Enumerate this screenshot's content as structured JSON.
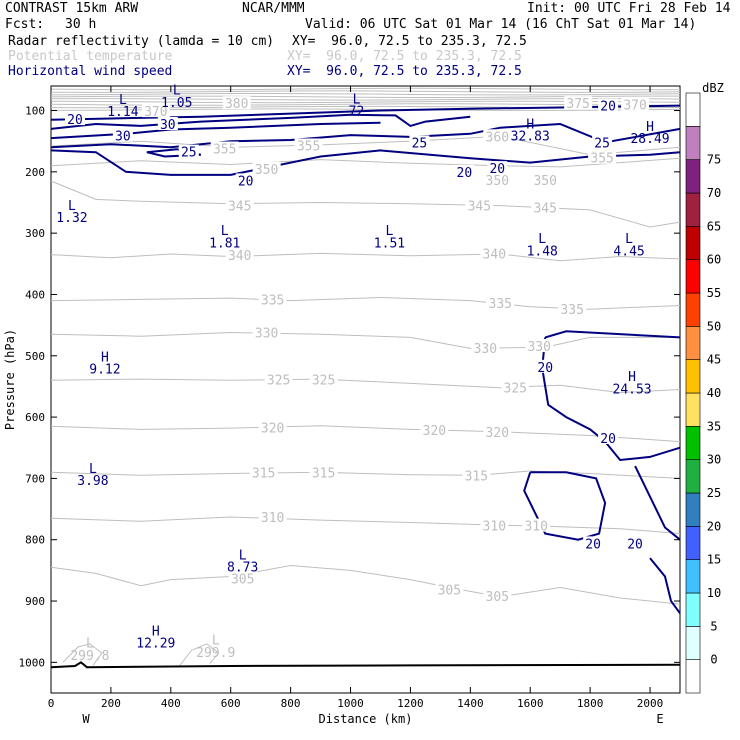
{
  "header": {
    "model": "CONTRAST 15km ARW",
    "center": "NCAR/MMM",
    "init": "Init: 00 UTC Fri 28 Feb 14",
    "fcst_label": "Fcst:",
    "fcst_value": "30 h",
    "valid": "Valid: 06 UTC Sat 01 Mar 14 (16 ChT Sat 01 Mar 14)",
    "fields": [
      {
        "name": "Radar reflectivity (lamda = 10 cm)",
        "xy": "XY=  96.0, 72.5 to 235.3, 72.5",
        "style": "black"
      },
      {
        "name": "Potential temperature",
        "xy": "XY=  96.0, 72.5 to 235.3, 72.5",
        "style": "faint"
      },
      {
        "name": "Horizontal wind speed",
        "xy": "XY=  96.0, 72.5 to 235.3, 72.5",
        "style": "navy"
      }
    ]
  },
  "chart_data": {
    "type": "contour-cross-section",
    "xlabel": "Distance (km)",
    "ylabel": "Pressure (hPa)",
    "xlim": [
      0,
      2100
    ],
    "ylim": [
      1050,
      60
    ],
    "x_ticks": [
      0,
      200,
      400,
      600,
      800,
      1000,
      1200,
      1400,
      1600,
      1800,
      2000
    ],
    "y_ticks": [
      100,
      200,
      300,
      400,
      500,
      600,
      700,
      800,
      900,
      1000
    ],
    "west_label": "W",
    "east_label": "E",
    "colorbar": {
      "unit": "dBZ",
      "levels": [
        0,
        5,
        10,
        15,
        20,
        25,
        30,
        35,
        40,
        45,
        50,
        55,
        60,
        65,
        70,
        75
      ],
      "colors": [
        "#ffffff",
        "#e0ffff",
        "#80ffff",
        "#40c0ff",
        "#4060ff",
        "#3080c0",
        "#20b040",
        "#00c000",
        "#ffe060",
        "#ffc000",
        "#ff9040",
        "#ff4000",
        "#ff0000",
        "#c00000",
        "#a02040",
        "#802080",
        "#c080c0",
        "#ffffff"
      ]
    },
    "colors": {
      "theta": "#bebebe",
      "wind": "#000080",
      "ground": "#000000"
    },
    "theta_labels": [
      {
        "text": "380",
        "x": 620,
        "p": 88
      },
      {
        "text": "370",
        "x": 350,
        "p": 101
      },
      {
        "text": "375",
        "x": 1760,
        "p": 88
      },
      {
        "text": "370",
        "x": 1950,
        "p": 90
      },
      {
        "text": "360",
        "x": 1490,
        "p": 142
      },
      {
        "text": "355",
        "x": 580,
        "p": 162
      },
      {
        "text": "355",
        "x": 860,
        "p": 157
      },
      {
        "text": "355",
        "x": 1840,
        "p": 177
      },
      {
        "text": "350",
        "x": 720,
        "p": 195
      },
      {
        "text": "350",
        "x": 1490,
        "p": 213
      },
      {
        "text": "350",
        "x": 1650,
        "p": 213
      },
      {
        "text": "345",
        "x": 630,
        "p": 255
      },
      {
        "text": "345",
        "x": 1430,
        "p": 255
      },
      {
        "text": "345",
        "x": 1650,
        "p": 258
      },
      {
        "text": "340",
        "x": 630,
        "p": 336
      },
      {
        "text": "340",
        "x": 1480,
        "p": 333
      },
      {
        "text": "335",
        "x": 740,
        "p": 408
      },
      {
        "text": "335",
        "x": 1500,
        "p": 414
      },
      {
        "text": "335",
        "x": 1740,
        "p": 424
      },
      {
        "text": "330",
        "x": 720,
        "p": 462
      },
      {
        "text": "330",
        "x": 1450,
        "p": 487
      },
      {
        "text": "330",
        "x": 1630,
        "p": 484
      },
      {
        "text": "325",
        "x": 760,
        "p": 539
      },
      {
        "text": "325",
        "x": 910,
        "p": 539
      },
      {
        "text": "325",
        "x": 1550,
        "p": 552
      },
      {
        "text": "320",
        "x": 740,
        "p": 617
      },
      {
        "text": "320",
        "x": 1280,
        "p": 621
      },
      {
        "text": "320",
        "x": 1490,
        "p": 624
      },
      {
        "text": "315",
        "x": 710,
        "p": 690
      },
      {
        "text": "315",
        "x": 910,
        "p": 690
      },
      {
        "text": "315",
        "x": 1420,
        "p": 695
      },
      {
        "text": "310",
        "x": 740,
        "p": 763
      },
      {
        "text": "310",
        "x": 1480,
        "p": 777
      },
      {
        "text": "310",
        "x": 1620,
        "p": 777
      },
      {
        "text": "305",
        "x": 640,
        "p": 863
      },
      {
        "text": "305",
        "x": 1330,
        "p": 881
      },
      {
        "text": "305",
        "x": 1490,
        "p": 892
      }
    ],
    "wind_labels": [
      {
        "text": "20",
        "x": 80,
        "p": 114
      },
      {
        "text": "30",
        "x": 390,
        "p": 122
      },
      {
        "text": "30",
        "x": 240,
        "p": 141
      },
      {
        "text": "25",
        "x": 460,
        "p": 167
      },
      {
        "text": "20",
        "x": 650,
        "p": 214
      },
      {
        "text": "25",
        "x": 1230,
        "p": 152
      },
      {
        "text": "20",
        "x": 1380,
        "p": 200
      },
      {
        "text": "20",
        "x": 1490,
        "p": 194
      },
      {
        "text": "25",
        "x": 1840,
        "p": 152
      },
      {
        "text": "20",
        "x": 1860,
        "p": 92
      },
      {
        "text": "20",
        "x": 1650,
        "p": 518
      },
      {
        "text": "20",
        "x": 1860,
        "p": 634
      },
      {
        "text": "20",
        "x": 1810,
        "p": 806
      },
      {
        "text": "20",
        "x": 1950,
        "p": 806
      }
    ],
    "extrema": [
      {
        "kind": "L",
        "value": "1.05",
        "x": 420,
        "p": 86,
        "color": "navy"
      },
      {
        "kind": "L",
        "value": "1.14",
        "x": 240,
        "p": 101,
        "color": "navy"
      },
      {
        "kind": "L",
        "value": "72",
        "x": 1020,
        "p": 100,
        "color": "navy"
      },
      {
        "kind": "H",
        "value": "32.83",
        "x": 1600,
        "p": 141,
        "color": "navy"
      },
      {
        "kind": "H",
        "value": "28.49",
        "x": 2000,
        "p": 145,
        "color": "navy"
      },
      {
        "kind": "L",
        "value": "1.32",
        "x": 70,
        "p": 274,
        "color": "navy"
      },
      {
        "kind": "L",
        "value": "1.81",
        "x": 580,
        "p": 315,
        "color": "navy"
      },
      {
        "kind": "L",
        "value": "1.51",
        "x": 1130,
        "p": 315,
        "color": "navy"
      },
      {
        "kind": "L",
        "value": "1.48",
        "x": 1640,
        "p": 328,
        "color": "navy"
      },
      {
        "kind": "L",
        "value": "4.45",
        "x": 1930,
        "p": 328,
        "color": "navy"
      },
      {
        "kind": "H",
        "value": "9.12",
        "x": 180,
        "p": 521,
        "color": "navy"
      },
      {
        "kind": "H",
        "value": "24.53",
        "x": 1940,
        "p": 553,
        "color": "navy"
      },
      {
        "kind": "L",
        "value": "3.98",
        "x": 140,
        "p": 703,
        "color": "navy"
      },
      {
        "kind": "L",
        "value": "8.73",
        "x": 640,
        "p": 844,
        "color": "navy"
      },
      {
        "kind": "H",
        "value": "12.29",
        "x": 350,
        "p": 968,
        "color": "navy"
      },
      {
        "kind": "L",
        "value": "299.8",
        "x": 130,
        "p": 988,
        "color": "faint"
      },
      {
        "kind": "L",
        "value": "299.9",
        "x": 550,
        "p": 983,
        "color": "faint"
      }
    ]
  }
}
